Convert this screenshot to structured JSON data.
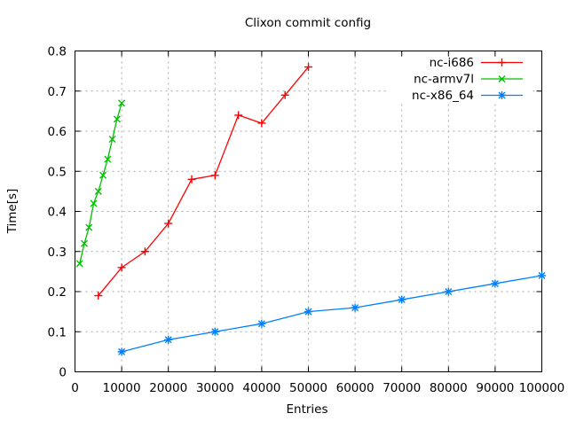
{
  "chart_data": {
    "type": "line",
    "title": "Clixon commit config",
    "xlabel": "Entries",
    "ylabel": "Time[s]",
    "xlim": [
      0,
      100000
    ],
    "ylim": [
      0,
      0.8
    ],
    "grid": true,
    "legend_position": "top-right-inside",
    "x_ticks": [
      0,
      10000,
      20000,
      30000,
      40000,
      50000,
      60000,
      70000,
      80000,
      90000,
      100000
    ],
    "x_tick_labels": [
      "0",
      "10000",
      "20000",
      "30000",
      "40000",
      "50000",
      "60000",
      "70000",
      "80000",
      "90000",
      "100000"
    ],
    "y_ticks": [
      0,
      0.1,
      0.2,
      0.3,
      0.4,
      0.5,
      0.6,
      0.7,
      0.8
    ],
    "y_tick_labels": [
      "0",
      "0.1",
      "0.2",
      "0.3",
      "0.4",
      "0.5",
      "0.6",
      "0.7",
      "0.8"
    ],
    "series": [
      {
        "name": "nc-i686",
        "color": "#ff0000",
        "marker": "plus",
        "x": [
          5000,
          10000,
          15000,
          20000,
          25000,
          30000,
          35000,
          40000,
          45000,
          50000
        ],
        "y": [
          0.19,
          0.26,
          0.3,
          0.37,
          0.48,
          0.49,
          0.64,
          0.62,
          0.69,
          0.76
        ]
      },
      {
        "name": "nc-armv7l",
        "color": "#00c000",
        "marker": "cross",
        "x": [
          1000,
          2000,
          3000,
          4000,
          5000,
          6000,
          7000,
          8000,
          9000,
          10000
        ],
        "y": [
          0.27,
          0.32,
          0.36,
          0.42,
          0.45,
          0.49,
          0.53,
          0.58,
          0.63,
          0.67
        ]
      },
      {
        "name": "nc-x86_64",
        "color": "#0080ff",
        "marker": "asterisk",
        "x": [
          10000,
          20000,
          30000,
          40000,
          50000,
          60000,
          70000,
          80000,
          90000,
          100000
        ],
        "y": [
          0.05,
          0.08,
          0.1,
          0.12,
          0.15,
          0.16,
          0.18,
          0.2,
          0.22,
          0.24
        ]
      }
    ]
  }
}
